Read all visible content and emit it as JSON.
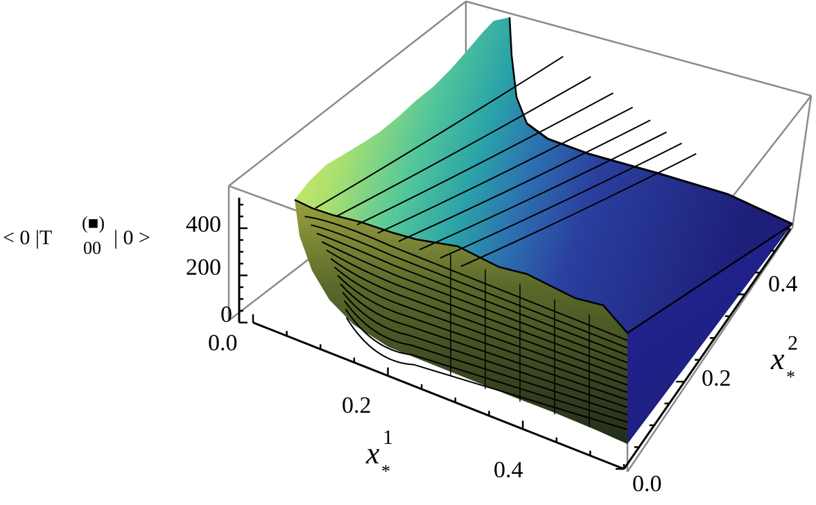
{
  "chart_data": {
    "type": "surface3d",
    "title": "",
    "xlabel": {
      "symbol": "x",
      "sup": "1",
      "sub": "*"
    },
    "ylabel": {
      "symbol": "x",
      "sup": "2",
      "sub": "*"
    },
    "zlabel": {
      "prefix": "< 0 |T",
      "sup": "(■)",
      "sub": "00",
      "suffix": "| 0 >"
    },
    "xlim": [
      0.0,
      0.55
    ],
    "ylim": [
      0.0,
      0.55
    ],
    "zlim": [
      0,
      500
    ],
    "x_ticks": [
      "0.0",
      "0.2",
      "0.4"
    ],
    "y_ticks": [
      "0.0",
      "0.2",
      "0.4"
    ],
    "z_ticks": [
      "0",
      "200",
      "400"
    ],
    "description_values": {
      "peak_z_near_origin": 480,
      "plateau_z": 10,
      "contour_count": 16
    },
    "colormap": [
      "#1d1f7a",
      "#2a3f9e",
      "#2d6fb0",
      "#2aa3a8",
      "#52c69a",
      "#a8e070",
      "#eef060"
    ],
    "side_shade": [
      "#2a3a20",
      "#5a6a2a",
      "#9aa040"
    ],
    "box_color": "#8a8a8a"
  }
}
